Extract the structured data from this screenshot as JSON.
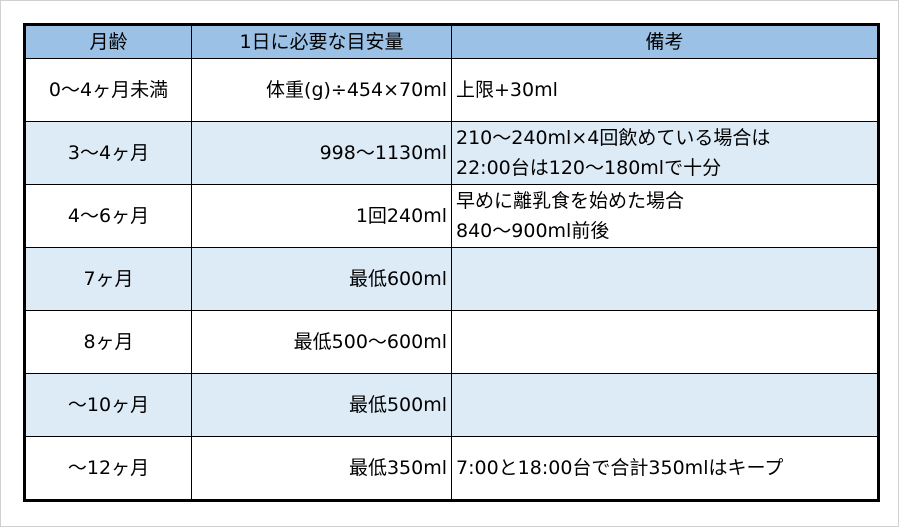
{
  "headers": [
    "月齢",
    "1日に必要な目安量",
    "備考"
  ],
  "rows": [
    {
      "age": "0～4ヶ月未満",
      "amount": "体重(g)÷454×70ml",
      "note": [
        "上限+30ml"
      ]
    },
    {
      "age": "3～4ヶ月",
      "amount": "998～1130ml",
      "note": [
        "210～240ml×4回飲めている場合は",
        "22:00台は120～180mlで十分"
      ]
    },
    {
      "age": "4～6ヶ月",
      "amount": "1回240ml",
      "note": [
        "早めに離乳食を始めた場合",
        "840～900ml前後"
      ]
    },
    {
      "age": "7ヶ月",
      "amount": "最低600ml",
      "note": []
    },
    {
      "age": "8ヶ月",
      "amount": "最低500～600ml",
      "note": []
    },
    {
      "age": "～10ヶ月",
      "amount": "最低500ml",
      "note": []
    },
    {
      "age": "～12ヶ月",
      "amount": "最低350ml",
      "note": [
        "7:00と18:00台で合計350mlはキープ"
      ]
    }
  ],
  "colors": {
    "header_bg": "#9bc2e6",
    "alt_row_bg": "#ddebf7"
  }
}
